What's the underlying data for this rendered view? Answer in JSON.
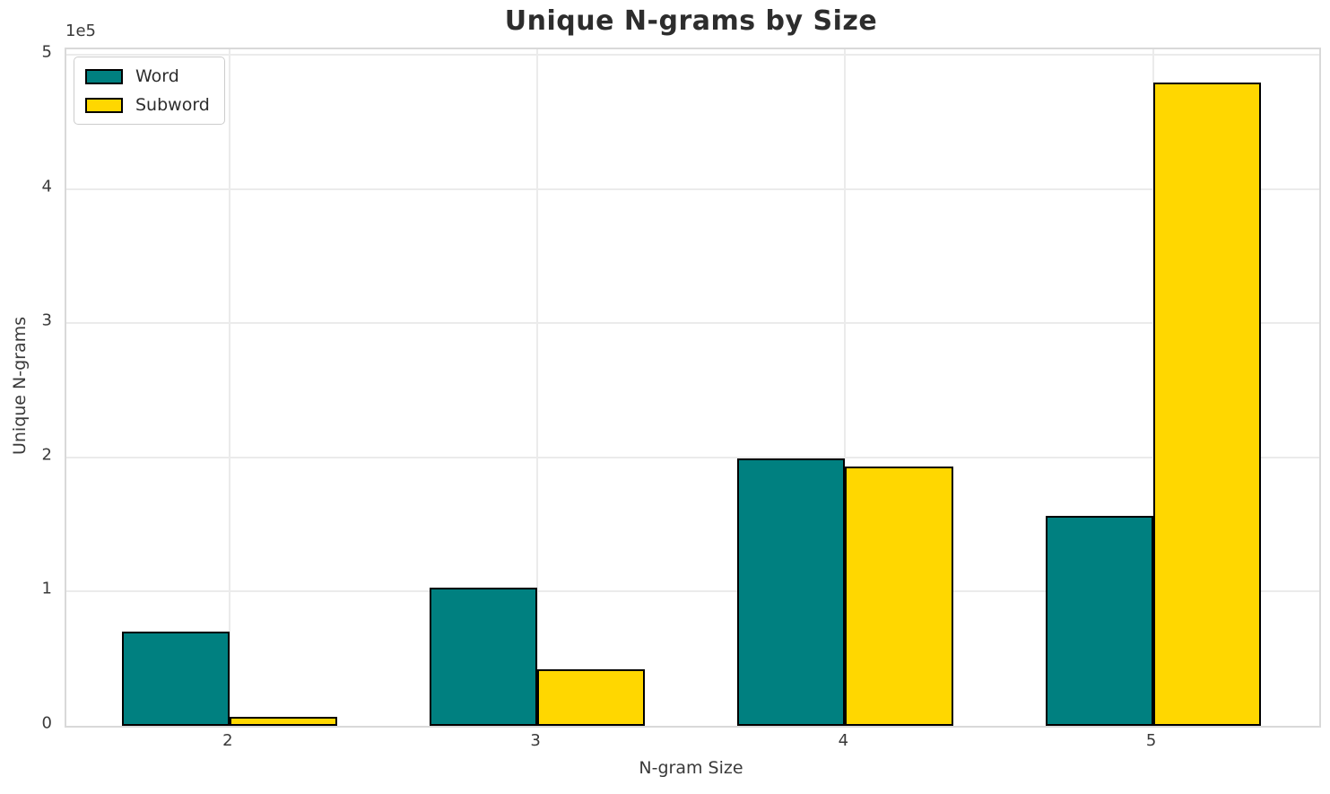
{
  "title": "Unique N-grams by Size",
  "axes": {
    "x_label": "N-gram Size",
    "y_label": "Unique N-grams",
    "y_offset_label": "1e5",
    "x_tick_labels": [
      "2",
      "3",
      "4",
      "5"
    ],
    "y_tick_labels": [
      "0",
      "1",
      "2",
      "3",
      "4",
      "5"
    ]
  },
  "legend": {
    "items": [
      {
        "label": "Word",
        "color": "#008080"
      },
      {
        "label": "Subword",
        "color": "#FFD700"
      }
    ]
  },
  "chart_data": {
    "type": "bar",
    "title": "Unique N-grams by Size",
    "xlabel": "N-gram Size",
    "ylabel": "Unique N-grams",
    "categories": [
      2,
      3,
      4,
      5
    ],
    "series": [
      {
        "name": "Word",
        "color": "#008080",
        "values": [
          70000,
          103000,
          199000,
          156500
        ]
      },
      {
        "name": "Subword",
        "color": "#FFD700",
        "values": [
          6500,
          42000,
          193500,
          479000
        ]
      }
    ],
    "y_ticks": [
      0,
      100000,
      200000,
      300000,
      400000,
      500000
    ],
    "y_tick_scale": "1e5",
    "ylim": [
      0,
      504000
    ],
    "xlim": [
      1.47,
      5.54
    ],
    "bar_width_units": 0.35,
    "bar_edge_color": "#000000",
    "grid": true,
    "legend_position": "upper left"
  }
}
